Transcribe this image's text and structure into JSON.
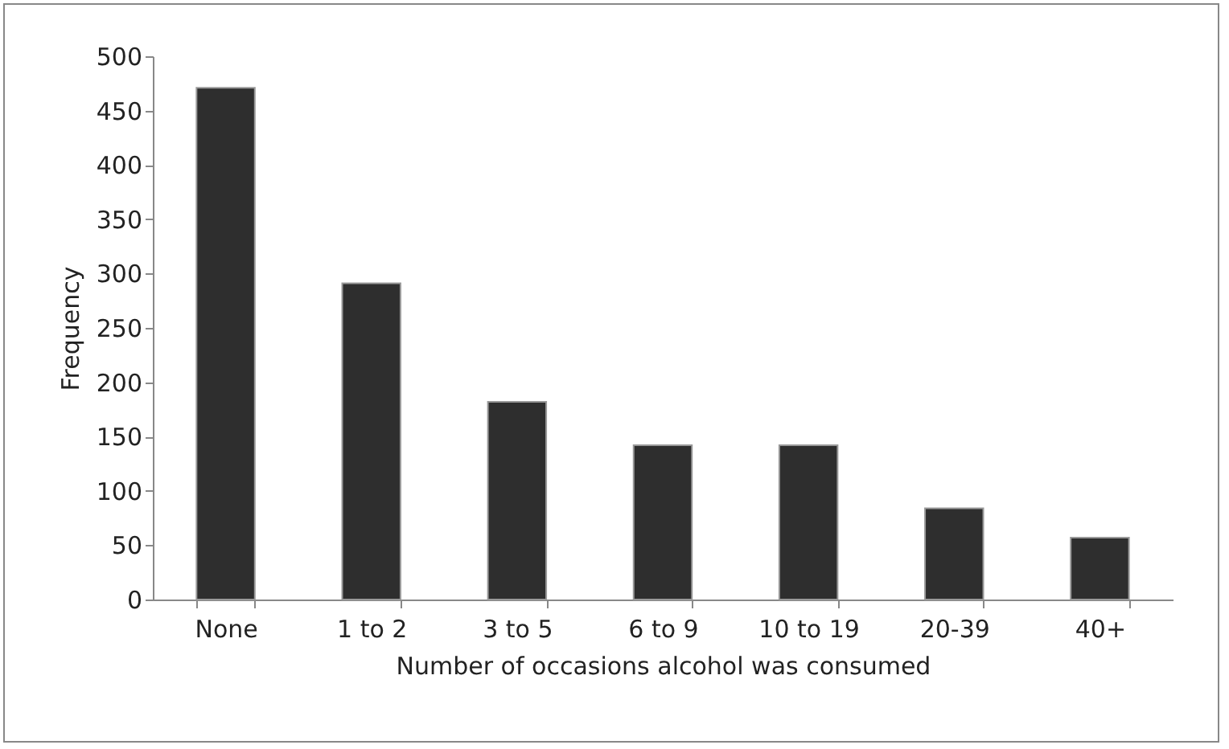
{
  "chart_data": {
    "type": "bar",
    "xlabel": "Number of occasions  alcohol  was consumed",
    "ylabel": "Frequency",
    "categories": [
      "None",
      "1 to 2",
      "3 to 5",
      "6 to 9",
      "10 to 19",
      "20-39",
      "40+"
    ],
    "values": [
      471,
      291,
      182,
      142,
      142,
      84,
      57
    ],
    "color": "#2e2e2e",
    "ylim": [
      0,
      500
    ],
    "yticks": [
      0,
      50,
      100,
      150,
      200,
      250,
      300,
      350,
      400,
      450,
      500
    ],
    "grid": false
  }
}
